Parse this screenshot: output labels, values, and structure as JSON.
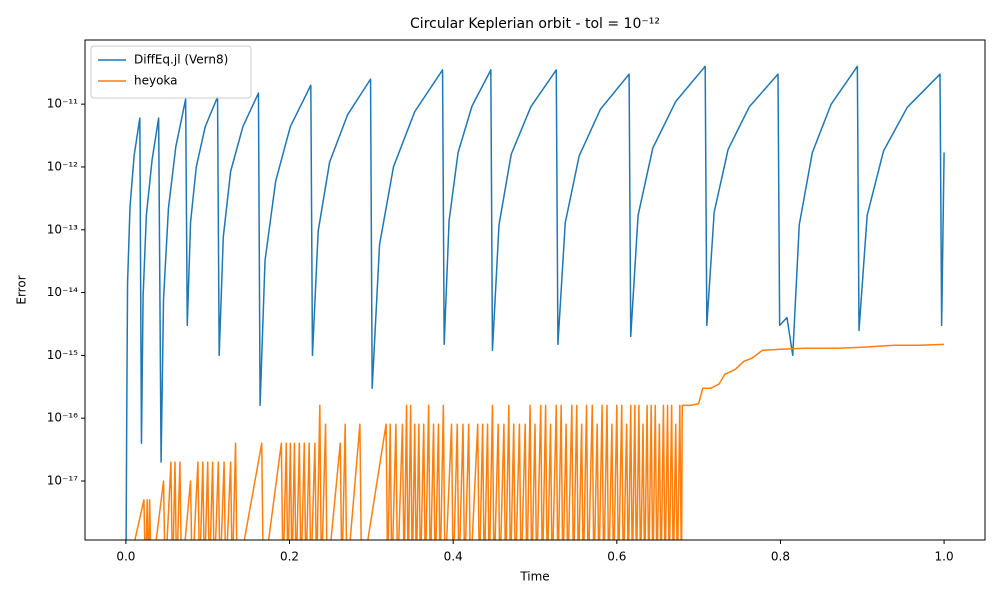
{
  "chart_data": {
    "type": "line",
    "title": "Circular Keplerian orbit - tol = 10⁻¹²",
    "xlabel": "Time",
    "ylabel": "Error",
    "log_y": true,
    "legend": "upper left",
    "xlim": [
      -0.05,
      1.05
    ],
    "ylim": [
      1.15e-18,
      1.05e-10
    ],
    "xticks": [
      {
        "value": 0,
        "label": "0.0"
      },
      0.2,
      0.4,
      0.6,
      0.8,
      {
        "value": 1,
        "label": "1.0"
      }
    ],
    "yticks": [
      {
        "value": 1e-17,
        "label": "10⁻¹⁷"
      },
      {
        "value": 1e-16,
        "label": "10⁻¹⁶"
      },
      {
        "value": 1e-15,
        "label": "10⁻¹⁵"
      },
      {
        "value": 1e-14,
        "label": "10⁻¹⁴"
      },
      {
        "value": 1e-13,
        "label": "10⁻¹³"
      },
      {
        "value": 1e-12,
        "label": "10⁻¹²"
      },
      {
        "value": 1e-11,
        "label": "10⁻¹¹"
      }
    ],
    "series": [
      {
        "name": "DiffEq.jl (Vern8)",
        "color": "#1f77b4",
        "x": [
          0,
          0.001,
          0.002,
          0.005,
          0.01,
          0.017,
          0.019,
          0.021,
          0.025,
          0.032,
          0.04,
          0.043,
          0.046,
          0.052,
          0.061,
          0.073,
          0.075,
          0.079,
          0.086,
          0.097,
          0.112,
          0.114,
          0.119,
          0.128,
          0.143,
          0.162,
          0.164,
          0.17,
          0.183,
          0.201,
          0.226,
          0.228,
          0.235,
          0.249,
          0.271,
          0.299,
          0.301,
          0.31,
          0.327,
          0.353,
          0.387,
          0.389,
          0.395,
          0.406,
          0.423,
          0.446,
          0.448,
          0.456,
          0.471,
          0.495,
          0.526,
          0.528,
          0.537,
          0.554,
          0.58,
          0.615,
          0.617,
          0.626,
          0.644,
          0.672,
          0.708,
          0.71,
          0.719,
          0.736,
          0.762,
          0.797,
          0.799,
          0.808,
          0.815,
          0.823,
          0.839,
          0.862,
          0.894,
          0.896,
          0.906,
          0.926,
          0.955,
          0.995,
          0.997,
          1.0
        ],
        "values": [
          0,
          1e-16,
          1.4e-14,
          2.3e-13,
          1.5e-12,
          6e-12,
          4e-17,
          8.7e-15,
          1.7e-13,
          1.3e-12,
          6e-12,
          2e-17,
          8e-15,
          2.2e-13,
          2.1e-12,
          1.2e-11,
          3e-15,
          1.3e-13,
          1e-12,
          4.4e-12,
          1.3e-11,
          1e-15,
          7.6e-14,
          8.5e-13,
          4.4e-12,
          1.5e-11,
          1.6e-16,
          3.2e-14,
          5.9e-13,
          4.4e-12,
          2e-11,
          1e-15,
          9.5e-14,
          1.2e-12,
          6.8e-12,
          2.5e-11,
          3e-16,
          5.8e-14,
          1e-12,
          7.6e-12,
          3.5e-11,
          1.5e-15,
          1.4e-13,
          1.7e-12,
          9.3e-12,
          3.5e-11,
          1.2e-15,
          1.2e-13,
          1.6e-12,
          9.1e-12,
          3.5e-11,
          1.5e-15,
          1.3e-13,
          1.5e-12,
          8.3e-12,
          3e-11,
          2e-15,
          1.7e-13,
          2e-12,
          1.1e-11,
          4e-11,
          3e-15,
          1.9e-13,
          1.9e-12,
          9.1e-12,
          3e-11,
          3e-15,
          4e-15,
          1e-15,
          1.2e-13,
          1.7e-12,
          1e-11,
          4e-11,
          2.5e-15,
          1.7e-13,
          1.8e-12,
          8.9e-12,
          3e-11,
          3e-15,
          1.7e-12
        ]
      },
      {
        "name": "heyoka",
        "color": "#ff7f0e",
        "x": [
          0,
          0.022,
          0.024,
          0.026,
          0.028,
          0.029,
          0.031,
          0.046,
          0.048,
          0.055,
          0.057,
          0.06,
          0.062,
          0.066,
          0.068,
          0.079,
          0.081,
          0.088,
          0.09,
          0.094,
          0.096,
          0.1,
          0.102,
          0.106,
          0.108,
          0.113,
          0.115,
          0.12,
          0.122,
          0.128,
          0.13,
          0.134,
          0.136,
          0.166,
          0.168,
          0.19,
          0.192,
          0.196,
          0.198,
          0.201,
          0.203,
          0.206,
          0.208,
          0.212,
          0.214,
          0.218,
          0.22,
          0.224,
          0.226,
          0.231,
          0.233,
          0.237,
          0.239,
          0.244,
          0.246,
          0.262,
          0.264,
          0.268,
          0.27,
          0.286,
          0.288,
          0.318,
          0.32,
          0.323,
          0.325,
          0.33,
          0.332,
          0.338,
          0.34,
          0.343,
          0.345,
          0.348,
          0.35,
          0.353,
          0.355,
          0.358,
          0.36,
          0.364,
          0.366,
          0.37,
          0.372,
          0.376,
          0.378,
          0.382,
          0.384,
          0.388,
          0.39,
          0.398,
          0.4,
          0.405,
          0.407,
          0.412,
          0.414,
          0.419,
          0.421,
          0.43,
          0.432,
          0.436,
          0.438,
          0.442,
          0.444,
          0.448,
          0.45,
          0.455,
          0.457,
          0.462,
          0.464,
          0.468,
          0.47,
          0.474,
          0.476,
          0.481,
          0.483,
          0.488,
          0.49,
          0.494,
          0.496,
          0.5,
          0.502,
          0.507,
          0.509,
          0.513,
          0.515,
          0.519,
          0.521,
          0.526,
          0.528,
          0.532,
          0.534,
          0.538,
          0.54,
          0.545,
          0.547,
          0.551,
          0.553,
          0.557,
          0.559,
          0.563,
          0.565,
          0.57,
          0.572,
          0.576,
          0.578,
          0.582,
          0.584,
          0.588,
          0.59,
          0.594,
          0.596,
          0.6,
          0.602,
          0.606,
          0.608,
          0.612,
          0.614,
          0.617,
          0.619,
          0.622,
          0.624,
          0.627,
          0.629,
          0.632,
          0.634,
          0.637,
          0.639,
          0.642,
          0.644,
          0.647,
          0.649,
          0.652,
          0.654,
          0.657,
          0.659,
          0.662,
          0.664,
          0.667,
          0.669,
          0.672,
          0.674,
          0.677,
          0.679,
          0.68,
          0.69,
          0.7,
          0.705,
          0.715,
          0.725,
          0.732,
          0.745,
          0.755,
          0.765,
          0.778,
          0.8,
          0.83,
          0.87,
          0.9,
          0.94,
          0.97,
          1.0
        ],
        "values": [
          0,
          5e-18,
          0,
          5e-18,
          0,
          5e-18,
          0,
          1e-17,
          0,
          2e-17,
          0,
          2e-17,
          0,
          2e-17,
          0,
          1e-17,
          0,
          2e-17,
          0,
          2e-17,
          0,
          2e-17,
          0,
          2e-17,
          0,
          2e-17,
          0,
          2e-17,
          0,
          2e-17,
          0,
          4e-17,
          0,
          4e-17,
          0,
          4e-17,
          0,
          4e-17,
          0,
          4e-17,
          0,
          4e-17,
          0,
          4e-17,
          0,
          4e-17,
          0,
          4e-17,
          0,
          4e-17,
          0,
          1.6e-16,
          0,
          8e-17,
          0,
          4e-17,
          0,
          8e-17,
          0,
          8e-17,
          0,
          8e-17,
          0,
          8e-17,
          0,
          8e-17,
          0,
          8e-17,
          0,
          1.6e-16,
          0,
          1.6e-16,
          0,
          8e-17,
          0,
          8e-17,
          0,
          8e-17,
          0,
          1.6e-16,
          0,
          8e-17,
          0,
          8e-17,
          0,
          1.6e-16,
          0,
          8e-17,
          0,
          8e-17,
          0,
          8e-17,
          0,
          8e-17,
          0,
          8e-17,
          0,
          8e-17,
          0,
          8e-17,
          0,
          1.6e-16,
          0,
          8e-17,
          0,
          8e-17,
          0,
          1.6e-16,
          0,
          8e-17,
          0,
          8e-17,
          0,
          8e-17,
          0,
          1.6e-16,
          0,
          8e-17,
          0,
          1.6e-16,
          0,
          1.6e-16,
          0,
          8e-17,
          0,
          1.6e-16,
          0,
          1.6e-16,
          0,
          8e-17,
          0,
          1.6e-16,
          0,
          1.6e-16,
          0,
          8e-17,
          0,
          1.6e-16,
          0,
          1.6e-16,
          0,
          8e-17,
          0,
          1.6e-16,
          0,
          1.6e-16,
          0,
          8e-17,
          0,
          1.6e-16,
          0,
          1.6e-16,
          0,
          8e-17,
          0,
          1.6e-16,
          0,
          1.6e-16,
          0,
          1.6e-16,
          0,
          8e-17,
          0,
          1.6e-16,
          0,
          1.6e-16,
          0,
          1.6e-16,
          0,
          8e-17,
          0,
          1.6e-16,
          0,
          1.6e-16,
          0,
          1.6e-16,
          0,
          8e-17,
          0,
          1.6e-16,
          0,
          1.6e-16,
          1.6e-16,
          1.7e-16,
          3e-16,
          3e-16,
          3.5e-16,
          5e-16,
          6e-16,
          8e-16,
          9e-16,
          1.2e-15,
          1.25e-15,
          1.3e-15,
          1.3e-15,
          1.35e-15,
          1.45e-15,
          1.45e-15,
          1.5e-15
        ]
      }
    ]
  }
}
